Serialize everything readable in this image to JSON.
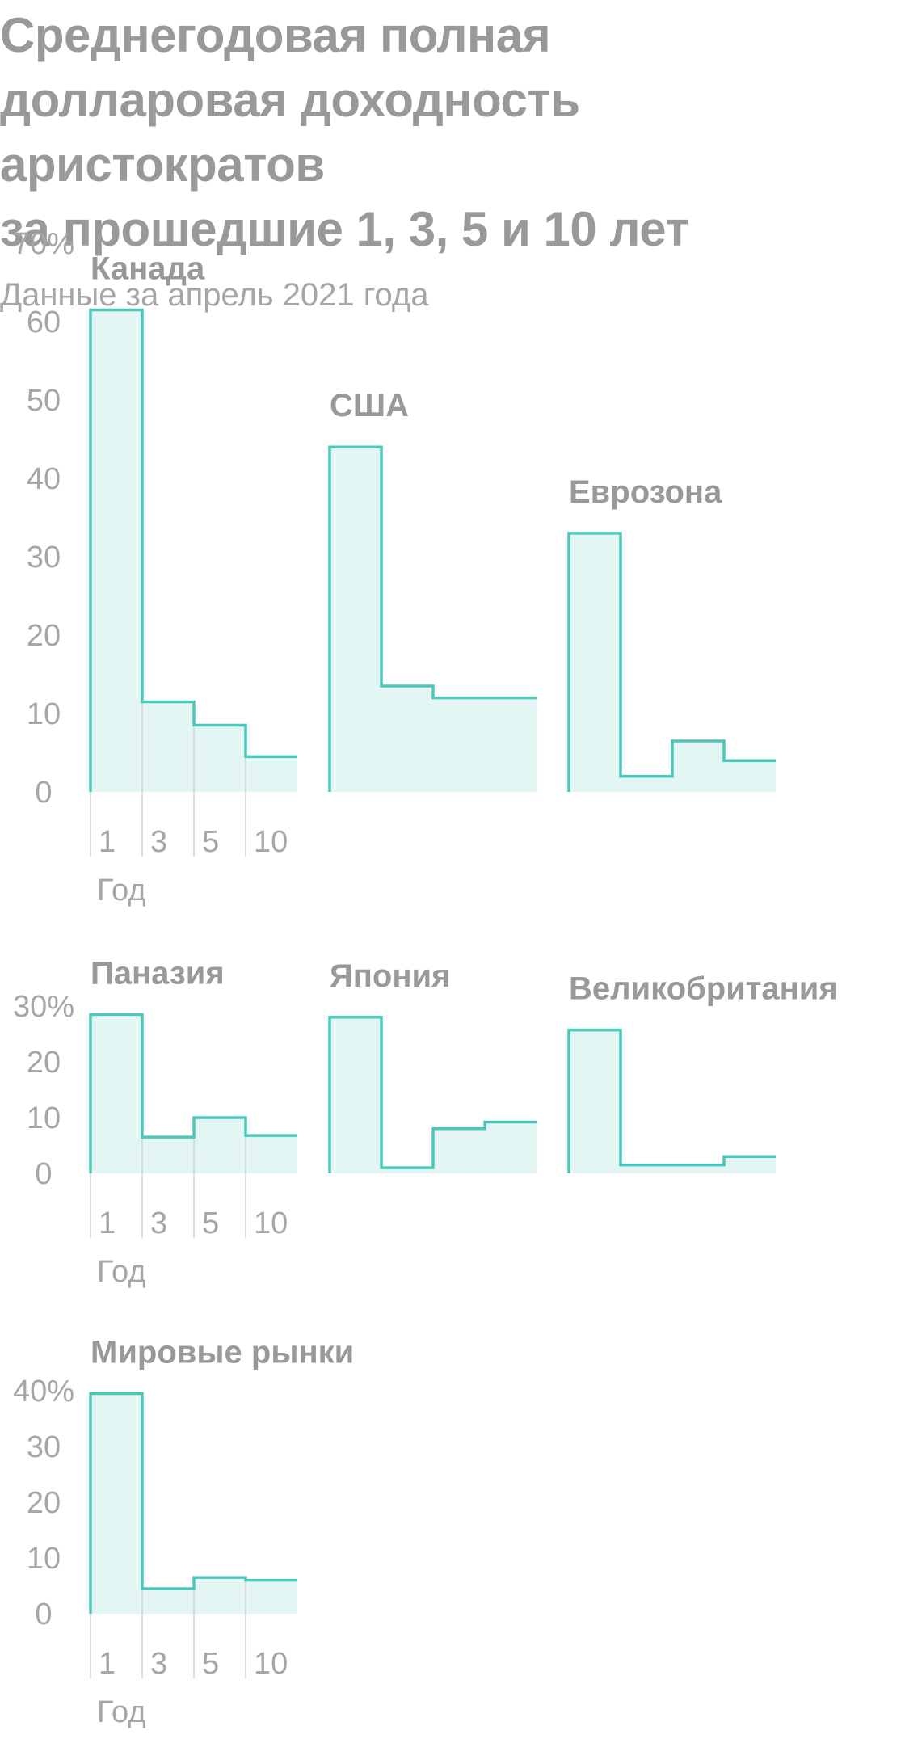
{
  "title": "Среднегодовая полная\nдолларовая доходность\nаристократов\nза прошедшие 1, 3, 5 и 10 лет",
  "subtitle": "Данные за апрель 2021 года",
  "colors": {
    "line": "#4cc8bb",
    "fill": "#e3f6f3",
    "text": "#999999",
    "guide": "#d2d2d2"
  },
  "chart_data": [
    {
      "type": "step-area",
      "categories": [
        "1",
        "3",
        "5",
        "10"
      ],
      "xlabel": "Год",
      "y_ticks": [
        "70%",
        "60",
        "50",
        "40",
        "30",
        "20",
        "10",
        "0"
      ],
      "ylim": [
        0,
        70
      ],
      "panels": [
        {
          "name": "Канада",
          "values": [
            61.5,
            11.5,
            8.5,
            4.5
          ]
        },
        {
          "name": "США",
          "values": [
            44,
            13.5,
            12,
            12
          ]
        },
        {
          "name": "Еврозона",
          "values": [
            33,
            2,
            6.5,
            4
          ]
        }
      ]
    },
    {
      "type": "step-area",
      "categories": [
        "1",
        "3",
        "5",
        "10"
      ],
      "xlabel": "Год",
      "y_ticks": [
        "30%",
        "20",
        "10",
        "0"
      ],
      "ylim": [
        0,
        30
      ],
      "panels": [
        {
          "name": "Паназия",
          "values": [
            28.5,
            6.5,
            10,
            6.8
          ]
        },
        {
          "name": "Япония",
          "values": [
            28,
            1,
            8,
            9.2
          ]
        },
        {
          "name": "Великобритания",
          "values": [
            25.7,
            1.5,
            1.5,
            3
          ]
        }
      ]
    },
    {
      "type": "step-area",
      "categories": [
        "1",
        "3",
        "5",
        "10"
      ],
      "xlabel": "Год",
      "y_ticks": [
        "40%",
        "30",
        "20",
        "10",
        "0"
      ],
      "ylim": [
        0,
        40
      ],
      "panels": [
        {
          "name": "Мировые рынки",
          "values": [
            39.5,
            4.5,
            6.5,
            6
          ]
        }
      ]
    }
  ]
}
